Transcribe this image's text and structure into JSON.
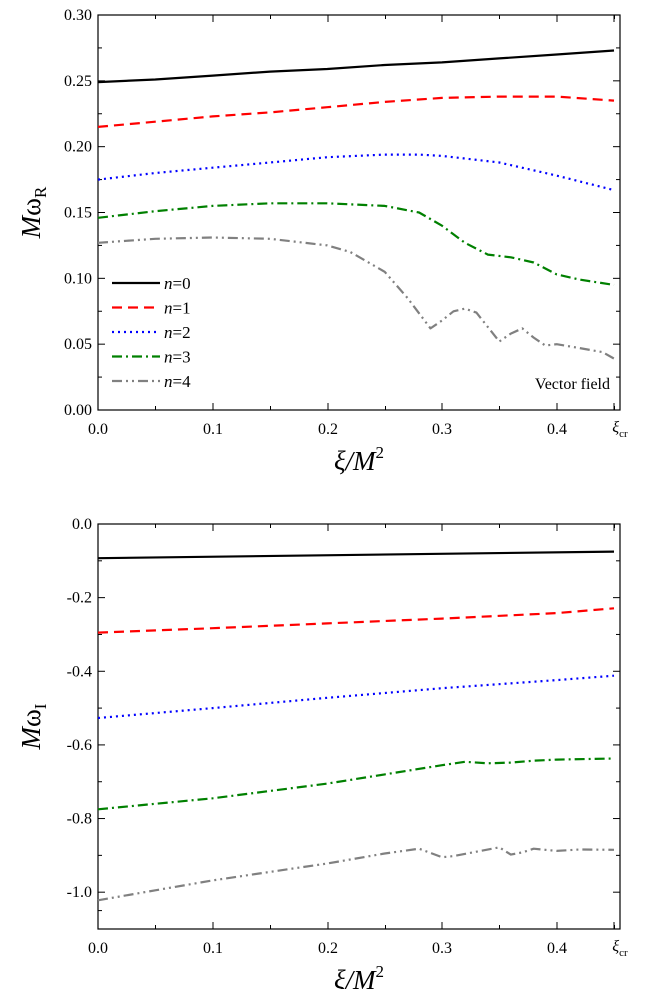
{
  "chart_data": [
    {
      "type": "line",
      "title": "",
      "xlabel": "ξ/M²",
      "ylabel": "MωR",
      "xlim": [
        0,
        0.45
      ],
      "ylim": [
        0,
        0.3
      ],
      "xticks": [
        "0.0",
        "0.1",
        "0.2",
        "0.3",
        "0.4",
        "ξcr"
      ],
      "yticks": [
        "0.00",
        "0.05",
        "0.10",
        "0.15",
        "0.20",
        "0.25",
        "0.30"
      ],
      "annotation": "Vector field",
      "legend_position": "lower-left",
      "series": [
        {
          "name": "n=0",
          "color": "#000000",
          "dash": "solid",
          "x": [
            0,
            0.05,
            0.1,
            0.15,
            0.2,
            0.25,
            0.3,
            0.35,
            0.4,
            0.45
          ],
          "y": [
            0.249,
            0.251,
            0.254,
            0.257,
            0.259,
            0.262,
            0.264,
            0.267,
            0.27,
            0.273
          ]
        },
        {
          "name": "n=1",
          "color": "#ff0000",
          "dash": "dashed",
          "x": [
            0,
            0.05,
            0.1,
            0.15,
            0.2,
            0.25,
            0.3,
            0.35,
            0.37,
            0.4,
            0.45
          ],
          "y": [
            0.215,
            0.219,
            0.223,
            0.226,
            0.23,
            0.234,
            0.237,
            0.238,
            0.238,
            0.238,
            0.235
          ]
        },
        {
          "name": "n=2",
          "color": "#0000ff",
          "dash": "dotted",
          "x": [
            0,
            0.05,
            0.1,
            0.15,
            0.2,
            0.25,
            0.28,
            0.3,
            0.35,
            0.4,
            0.45
          ],
          "y": [
            0.175,
            0.18,
            0.184,
            0.188,
            0.192,
            0.194,
            0.194,
            0.193,
            0.188,
            0.178,
            0.167
          ]
        },
        {
          "name": "n=3",
          "color": "#008000",
          "dash": "dashdot",
          "x": [
            0,
            0.05,
            0.1,
            0.15,
            0.2,
            0.25,
            0.28,
            0.3,
            0.32,
            0.34,
            0.36,
            0.38,
            0.4,
            0.42,
            0.45
          ],
          "y": [
            0.146,
            0.151,
            0.155,
            0.157,
            0.157,
            0.155,
            0.15,
            0.14,
            0.127,
            0.118,
            0.116,
            0.112,
            0.103,
            0.099,
            0.095
          ]
        },
        {
          "name": "n=4",
          "color": "#808080",
          "dash": "dashdotdot",
          "x": [
            0,
            0.05,
            0.1,
            0.15,
            0.2,
            0.22,
            0.25,
            0.27,
            0.29,
            0.3,
            0.31,
            0.32,
            0.33,
            0.34,
            0.35,
            0.36,
            0.37,
            0.38,
            0.39,
            0.4,
            0.42,
            0.44,
            0.45
          ],
          "y": [
            0.127,
            0.13,
            0.131,
            0.13,
            0.125,
            0.12,
            0.105,
            0.085,
            0.062,
            0.068,
            0.075,
            0.077,
            0.074,
            0.063,
            0.052,
            0.058,
            0.062,
            0.055,
            0.049,
            0.05,
            0.047,
            0.044,
            0.039
          ]
        }
      ]
    },
    {
      "type": "line",
      "title": "",
      "xlabel": "ξ/M²",
      "ylabel": "MωI",
      "xlim": [
        0,
        0.45
      ],
      "ylim": [
        -1.1,
        0.0
      ],
      "xticks": [
        "0.0",
        "0.1",
        "0.2",
        "0.3",
        "0.4",
        "ξcr"
      ],
      "yticks": [
        "0.0",
        "-0.2",
        "-0.4",
        "-0.6",
        "-0.8",
        "-1.0"
      ],
      "series": [
        {
          "name": "n=0",
          "color": "#000000",
          "dash": "solid",
          "x": [
            0,
            0.45
          ],
          "y": [
            -0.093,
            -0.075
          ]
        },
        {
          "name": "n=1",
          "color": "#ff0000",
          "dash": "dashed",
          "x": [
            0,
            0.1,
            0.2,
            0.3,
            0.4,
            0.45
          ],
          "y": [
            -0.295,
            -0.283,
            -0.27,
            -0.257,
            -0.242,
            -0.229
          ]
        },
        {
          "name": "n=2",
          "color": "#0000ff",
          "dash": "dotted",
          "x": [
            0,
            0.1,
            0.2,
            0.3,
            0.4,
            0.45
          ],
          "y": [
            -0.527,
            -0.5,
            -0.472,
            -0.446,
            -0.424,
            -0.412
          ]
        },
        {
          "name": "n=3",
          "color": "#008000",
          "dash": "dashdot",
          "x": [
            0,
            0.1,
            0.2,
            0.25,
            0.3,
            0.32,
            0.34,
            0.36,
            0.38,
            0.4,
            0.45
          ],
          "y": [
            -0.775,
            -0.745,
            -0.705,
            -0.68,
            -0.655,
            -0.646,
            -0.65,
            -0.648,
            -0.643,
            -0.64,
            -0.637
          ]
        },
        {
          "name": "n=4",
          "color": "#808080",
          "dash": "dashdotdot",
          "x": [
            0,
            0.05,
            0.1,
            0.15,
            0.2,
            0.25,
            0.28,
            0.3,
            0.31,
            0.33,
            0.35,
            0.36,
            0.37,
            0.38,
            0.4,
            0.42,
            0.45
          ],
          "y": [
            -1.022,
            -0.995,
            -0.968,
            -0.945,
            -0.922,
            -0.895,
            -0.882,
            -0.905,
            -0.902,
            -0.89,
            -0.878,
            -0.898,
            -0.892,
            -0.882,
            -0.888,
            -0.884,
            -0.885
          ]
        }
      ]
    }
  ]
}
